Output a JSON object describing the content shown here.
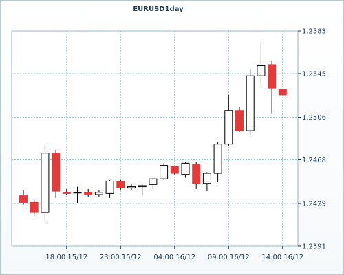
{
  "colors": {
    "up_fill": "#ffffff",
    "down_fill": "#e33a3a",
    "candle_stroke": "#000000",
    "grid": "#8fc7d6",
    "axis": "#1e3a5c"
  },
  "chart_data": {
    "type": "candlestick",
    "title": "EURUSD1day",
    "ylim": [
      1.2391,
      1.2583
    ],
    "y_ticks": [
      "1.2583",
      "1.2545",
      "1.2506",
      "1.2468",
      "1.2429",
      "1.2391"
    ],
    "x_tick_labels": [
      "18:00 15/12",
      "23:00 15/12",
      "04:00 16/12",
      "09:00 16/12",
      "14:00 16/12"
    ],
    "grid": true,
    "candles": [
      {
        "o": 1.2436,
        "h": 1.2441,
        "l": 1.2428,
        "c": 1.243
      },
      {
        "o": 1.243,
        "h": 1.2432,
        "l": 1.2418,
        "c": 1.2421
      },
      {
        "o": 1.2421,
        "h": 1.2481,
        "l": 1.2413,
        "c": 1.2474
      },
      {
        "o": 1.2474,
        "h": 1.2477,
        "l": 1.2434,
        "c": 1.244
      },
      {
        "o": 1.2439,
        "h": 1.2442,
        "l": 1.2437,
        "c": 1.2438
      },
      {
        "o": 1.2439,
        "h": 1.2444,
        "l": 1.2429,
        "c": 1.2439
      },
      {
        "o": 1.2439,
        "h": 1.2442,
        "l": 1.2435,
        "c": 1.2437
      },
      {
        "o": 1.2437,
        "h": 1.2441,
        "l": 1.2435,
        "c": 1.2439
      },
      {
        "o": 1.2438,
        "h": 1.245,
        "l": 1.2434,
        "c": 1.2449
      },
      {
        "o": 1.2449,
        "h": 1.245,
        "l": 1.2441,
        "c": 1.2443
      },
      {
        "o": 1.2443,
        "h": 1.2447,
        "l": 1.2441,
        "c": 1.2444
      },
      {
        "o": 1.2444,
        "h": 1.2447,
        "l": 1.2436,
        "c": 1.2445
      },
      {
        "o": 1.2446,
        "h": 1.2452,
        "l": 1.2442,
        "c": 1.2451
      },
      {
        "o": 1.2451,
        "h": 1.2465,
        "l": 1.245,
        "c": 1.2463
      },
      {
        "o": 1.2462,
        "h": 1.2463,
        "l": 1.2455,
        "c": 1.2456
      },
      {
        "o": 1.2455,
        "h": 1.2466,
        "l": 1.2452,
        "c": 1.2465
      },
      {
        "o": 1.2464,
        "h": 1.2466,
        "l": 1.2442,
        "c": 1.2447
      },
      {
        "o": 1.2447,
        "h": 1.2457,
        "l": 1.244,
        "c": 1.2456
      },
      {
        "o": 1.2456,
        "h": 1.2484,
        "l": 1.2448,
        "c": 1.2482
      },
      {
        "o": 1.2482,
        "h": 1.2526,
        "l": 1.248,
        "c": 1.2512
      },
      {
        "o": 1.2512,
        "h": 1.2515,
        "l": 1.2493,
        "c": 1.2494
      },
      {
        "o": 1.2494,
        "h": 1.2549,
        "l": 1.249,
        "c": 1.2543
      },
      {
        "o": 1.2543,
        "h": 1.2573,
        "l": 1.2535,
        "c": 1.2552
      },
      {
        "o": 1.2553,
        "h": 1.2556,
        "l": 1.2509,
        "c": 1.2532
      },
      {
        "o": 1.2531,
        "h": 1.2531,
        "l": 1.2526,
        "c": 1.2526
      }
    ]
  }
}
